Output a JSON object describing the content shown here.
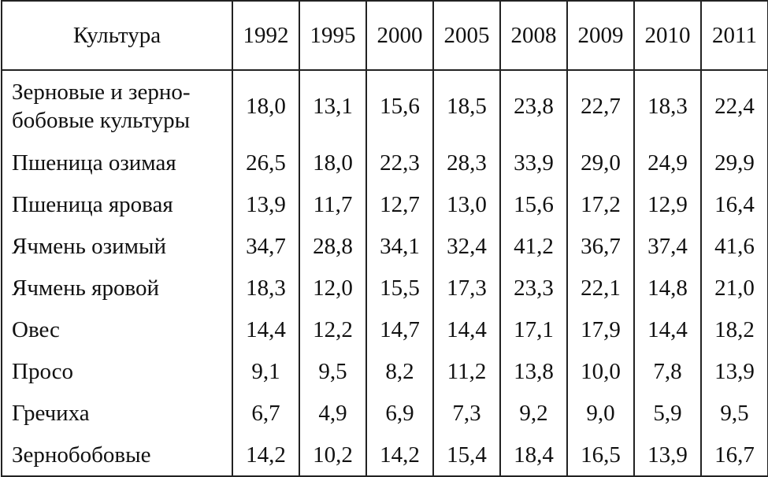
{
  "table": {
    "header": [
      "Культура",
      "1992",
      "1995",
      "2000",
      "2005",
      "2008",
      "2009",
      "2010",
      "2011"
    ],
    "rows": [
      [
        "Зерновые и зерно-\nбобовые культуры",
        "18,0",
        "13,1",
        "15,6",
        "18,5",
        "23,8",
        "22,7",
        "18,3",
        "22,4"
      ],
      [
        "Пшеница озимая",
        "26,5",
        "18,0",
        "22,3",
        "28,3",
        "33,9",
        "29,0",
        "24,9",
        "29,9"
      ],
      [
        "Пшеница яровая",
        "13,9",
        "11,7",
        "12,7",
        "13,0",
        "15,6",
        "17,2",
        "12,9",
        "16,4"
      ],
      [
        "Ячмень озимый",
        "34,7",
        "28,8",
        "34,1",
        "32,4",
        "41,2",
        "36,7",
        "37,4",
        "41,6"
      ],
      [
        "Ячмень яровой",
        "18,3",
        "12,0",
        "15,5",
        "17,3",
        "23,3",
        "22,1",
        "14,8",
        "21,0"
      ],
      [
        "Овес",
        "14,4",
        "12,2",
        "14,7",
        "14,4",
        "17,1",
        "17,9",
        "14,4",
        "18,2"
      ],
      [
        "Просо",
        "9,1",
        "9,5",
        "8,2",
        "11,2",
        "13,8",
        "10,0",
        "7,8",
        "13,9"
      ],
      [
        "Гречиха",
        "6,7",
        "4,9",
        "6,9",
        "7,3",
        "9,2",
        "9,0",
        "5,9",
        "9,5"
      ],
      [
        "Зернобобовые",
        "14,2",
        "10,2",
        "14,2",
        "15,4",
        "18,4",
        "16,5",
        "13,9",
        "16,7"
      ]
    ]
  }
}
